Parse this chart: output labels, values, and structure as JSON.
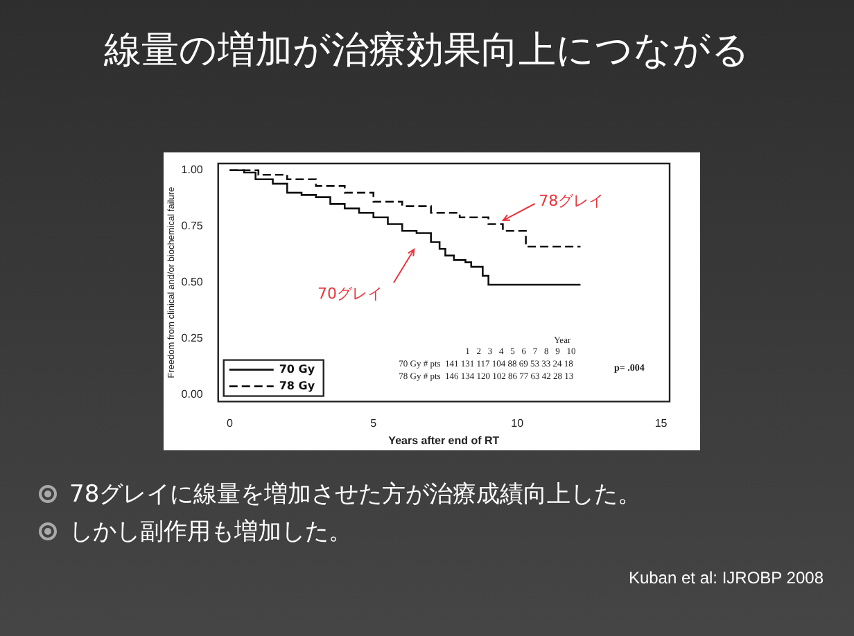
{
  "chart_data": {
    "type": "step",
    "title": "線量の増加が治療効果向上につながる",
    "xlabel": "Years after end of RT",
    "ylabel": "Freedom from clinical and/or biochemical failure",
    "xlim": [
      -0.4,
      15.3
    ],
    "xticks": [
      0,
      5,
      10,
      15
    ],
    "ylim": [
      -0.03,
      1.03
    ],
    "yticks": [
      {
        "value": 0,
        "label": "0.00"
      },
      {
        "value": 0.25,
        "label": "0.25"
      },
      {
        "value": 0.5,
        "label": "0.50"
      },
      {
        "value": 0.75,
        "label": "0.75"
      },
      {
        "value": 1,
        "label": "1.00"
      }
    ],
    "grid": false,
    "legend": "bottom left",
    "series": [
      {
        "name": "70 Gy",
        "color": "#111111",
        "line_style": "solid",
        "x": [
          0,
          0.5,
          0.9,
          1.5,
          2,
          2.5,
          3,
          3.5,
          4,
          4.5,
          5,
          5.5,
          6,
          6.5,
          7,
          7.3,
          7.5,
          7.8,
          8.2,
          8.4,
          8.8,
          9,
          12.2
        ],
        "values": [
          1,
          0.99,
          0.96,
          0.94,
          0.9,
          0.89,
          0.88,
          0.85,
          0.83,
          0.81,
          0.79,
          0.76,
          0.73,
          0.72,
          0.68,
          0.65,
          0.62,
          0.6,
          0.59,
          0.57,
          0.53,
          0.49,
          0.49
        ]
      },
      {
        "name": "78 Gy",
        "color": "#111111",
        "line_style": "dashed",
        "x": [
          0,
          1,
          2,
          3,
          4,
          5,
          6,
          7,
          8,
          9,
          9.5,
          10.3,
          12.2
        ],
        "values": [
          1,
          0.98,
          0.96,
          0.93,
          0.9,
          0.86,
          0.84,
          0.81,
          0.79,
          0.76,
          0.73,
          0.66,
          0.66
        ]
      }
    ],
    "annotations": [
      "Year",
      "1   2   3   4   5   6   7   8   9   10",
      "70 Gy # pts  141 131 117 104 88 69 53 33 24 18",
      "78 Gy # pts  146 134 120 102 86 77 63 42 28 13",
      "p= .004",
      "78グレイに線量を増加させた方が治療成績向上した。",
      "しかし副作用も増加した。",
      "Kuban et al: IJROBP 2008",
      "78グレイ",
      "70グレイ"
    ]
  }
}
